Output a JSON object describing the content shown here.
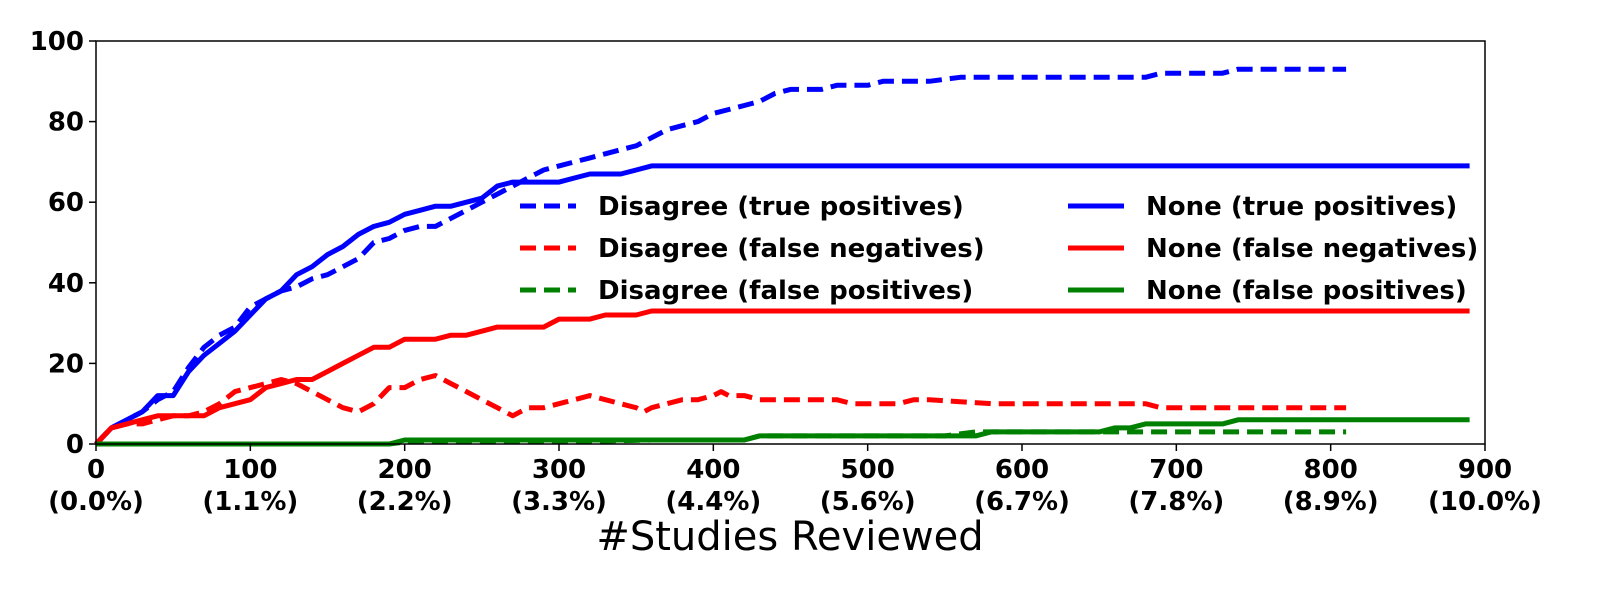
{
  "chart_data": {
    "type": "line",
    "title": "",
    "xlabel": "#Studies Reviewed",
    "ylabel": "",
    "xlim": [
      0,
      900
    ],
    "ylim": [
      0,
      100
    ],
    "x_ticks": [
      {
        "value": 0,
        "label": "0",
        "sublabel": "(0.0%)"
      },
      {
        "value": 100,
        "label": "100",
        "sublabel": "(1.1%)"
      },
      {
        "value": 200,
        "label": "200",
        "sublabel": "(2.2%)"
      },
      {
        "value": 300,
        "label": "300",
        "sublabel": "(3.3%)"
      },
      {
        "value": 400,
        "label": "400",
        "sublabel": "(4.4%)"
      },
      {
        "value": 500,
        "label": "500",
        "sublabel": "(5.6%)"
      },
      {
        "value": 600,
        "label": "600",
        "sublabel": "(6.7%)"
      },
      {
        "value": 700,
        "label": "700",
        "sublabel": "(7.8%)"
      },
      {
        "value": 800,
        "label": "800",
        "sublabel": "(8.9%)"
      },
      {
        "value": 900,
        "label": "900",
        "sublabel": "(10.0%)"
      }
    ],
    "y_ticks": [
      0,
      20,
      40,
      60,
      80,
      100
    ],
    "grid": false,
    "legend_position": "center-right",
    "series": [
      {
        "name": "Disagree (true positives)",
        "color": "#0000ff",
        "style": "dashed",
        "points": [
          [
            0,
            0
          ],
          [
            10,
            4
          ],
          [
            20,
            6
          ],
          [
            30,
            8
          ],
          [
            40,
            11
          ],
          [
            50,
            13
          ],
          [
            60,
            19
          ],
          [
            70,
            24
          ],
          [
            80,
            27
          ],
          [
            90,
            29
          ],
          [
            100,
            34
          ],
          [
            110,
            36
          ],
          [
            120,
            38
          ],
          [
            130,
            39
          ],
          [
            140,
            41
          ],
          [
            150,
            42
          ],
          [
            160,
            44
          ],
          [
            170,
            46
          ],
          [
            180,
            50
          ],
          [
            190,
            51
          ],
          [
            200,
            53
          ],
          [
            210,
            54
          ],
          [
            220,
            54
          ],
          [
            230,
            56
          ],
          [
            240,
            58
          ],
          [
            250,
            60
          ],
          [
            260,
            62
          ],
          [
            270,
            64
          ],
          [
            280,
            66
          ],
          [
            290,
            68
          ],
          [
            300,
            69
          ],
          [
            310,
            70
          ],
          [
            320,
            71
          ],
          [
            330,
            72
          ],
          [
            340,
            73
          ],
          [
            350,
            74
          ],
          [
            360,
            76
          ],
          [
            370,
            78
          ],
          [
            380,
            79
          ],
          [
            390,
            80
          ],
          [
            400,
            82
          ],
          [
            410,
            83
          ],
          [
            420,
            84
          ],
          [
            430,
            85
          ],
          [
            440,
            87
          ],
          [
            450,
            88
          ],
          [
            460,
            88
          ],
          [
            470,
            88
          ],
          [
            480,
            89
          ],
          [
            490,
            89
          ],
          [
            500,
            89
          ],
          [
            510,
            90
          ],
          [
            520,
            90
          ],
          [
            530,
            90
          ],
          [
            540,
            90
          ],
          [
            550,
            90.5
          ],
          [
            560,
            91
          ],
          [
            570,
            91
          ],
          [
            580,
            91
          ],
          [
            600,
            91
          ],
          [
            620,
            91
          ],
          [
            640,
            91
          ],
          [
            660,
            91
          ],
          [
            680,
            91
          ],
          [
            690,
            92
          ],
          [
            700,
            92
          ],
          [
            720,
            92
          ],
          [
            730,
            92
          ],
          [
            740,
            93
          ],
          [
            760,
            93
          ],
          [
            780,
            93
          ],
          [
            800,
            93
          ],
          [
            810,
            93
          ]
        ]
      },
      {
        "name": "Disagree (false negatives)",
        "color": "#ff0000",
        "style": "dashed",
        "points": [
          [
            0,
            0
          ],
          [
            10,
            4
          ],
          [
            20,
            5
          ],
          [
            30,
            5
          ],
          [
            40,
            6
          ],
          [
            50,
            7
          ],
          [
            60,
            7
          ],
          [
            70,
            8
          ],
          [
            80,
            10
          ],
          [
            90,
            13
          ],
          [
            100,
            14
          ],
          [
            110,
            15
          ],
          [
            120,
            16
          ],
          [
            130,
            15
          ],
          [
            140,
            13
          ],
          [
            150,
            11
          ],
          [
            160,
            9
          ],
          [
            170,
            8
          ],
          [
            180,
            10
          ],
          [
            190,
            14
          ],
          [
            200,
            14
          ],
          [
            210,
            16
          ],
          [
            220,
            17
          ],
          [
            230,
            15
          ],
          [
            240,
            13
          ],
          [
            250,
            11
          ],
          [
            260,
            9
          ],
          [
            270,
            7
          ],
          [
            280,
            9
          ],
          [
            290,
            9
          ],
          [
            300,
            10
          ],
          [
            310,
            11
          ],
          [
            320,
            12
          ],
          [
            330,
            11
          ],
          [
            340,
            10
          ],
          [
            350,
            9
          ],
          [
            355,
            8
          ],
          [
            360,
            9
          ],
          [
            370,
            10
          ],
          [
            380,
            11
          ],
          [
            390,
            11
          ],
          [
            400,
            12
          ],
          [
            405,
            13
          ],
          [
            410,
            12
          ],
          [
            420,
            12
          ],
          [
            430,
            11
          ],
          [
            440,
            11
          ],
          [
            460,
            11
          ],
          [
            480,
            11
          ],
          [
            490,
            10
          ],
          [
            500,
            10
          ],
          [
            520,
            10
          ],
          [
            530,
            11
          ],
          [
            540,
            11
          ],
          [
            560,
            10.5
          ],
          [
            580,
            10
          ],
          [
            600,
            10
          ],
          [
            640,
            10
          ],
          [
            680,
            10
          ],
          [
            690,
            9
          ],
          [
            700,
            9
          ],
          [
            740,
            9
          ],
          [
            780,
            9
          ],
          [
            810,
            9
          ]
        ]
      },
      {
        "name": "Disagree (false positives)",
        "color": "#008000",
        "style": "dashed",
        "points": [
          [
            0,
            0
          ],
          [
            100,
            0
          ],
          [
            190,
            0
          ],
          [
            200,
            0.5
          ],
          [
            250,
            0.5
          ],
          [
            300,
            0.5
          ],
          [
            360,
            1
          ],
          [
            400,
            1
          ],
          [
            420,
            1
          ],
          [
            430,
            2
          ],
          [
            500,
            2
          ],
          [
            550,
            2
          ],
          [
            570,
            3
          ],
          [
            600,
            3
          ],
          [
            650,
            3
          ],
          [
            700,
            3
          ],
          [
            750,
            3
          ],
          [
            810,
            3
          ]
        ]
      },
      {
        "name": "None (true positives)",
        "color": "#0000ff",
        "style": "solid",
        "points": [
          [
            0,
            0
          ],
          [
            10,
            4
          ],
          [
            20,
            6
          ],
          [
            30,
            8
          ],
          [
            40,
            12
          ],
          [
            50,
            12
          ],
          [
            60,
            18
          ],
          [
            70,
            22
          ],
          [
            80,
            25
          ],
          [
            90,
            28
          ],
          [
            100,
            32
          ],
          [
            110,
            36
          ],
          [
            120,
            38
          ],
          [
            130,
            42
          ],
          [
            140,
            44
          ],
          [
            150,
            47
          ],
          [
            160,
            49
          ],
          [
            170,
            52
          ],
          [
            180,
            54
          ],
          [
            190,
            55
          ],
          [
            200,
            57
          ],
          [
            210,
            58
          ],
          [
            220,
            59
          ],
          [
            230,
            59
          ],
          [
            240,
            60
          ],
          [
            250,
            61
          ],
          [
            260,
            64
          ],
          [
            270,
            65
          ],
          [
            280,
            65
          ],
          [
            290,
            65
          ],
          [
            300,
            65
          ],
          [
            310,
            66
          ],
          [
            320,
            67
          ],
          [
            330,
            67
          ],
          [
            340,
            67
          ],
          [
            350,
            68
          ],
          [
            360,
            69
          ],
          [
            400,
            69
          ],
          [
            500,
            69
          ],
          [
            600,
            69
          ],
          [
            700,
            69
          ],
          [
            800,
            69
          ],
          [
            890,
            69
          ]
        ]
      },
      {
        "name": "None (false negatives)",
        "color": "#ff0000",
        "style": "solid",
        "points": [
          [
            0,
            0
          ],
          [
            10,
            4
          ],
          [
            20,
            5
          ],
          [
            30,
            6
          ],
          [
            40,
            7
          ],
          [
            50,
            7
          ],
          [
            60,
            7
          ],
          [
            70,
            7
          ],
          [
            80,
            9
          ],
          [
            90,
            10
          ],
          [
            100,
            11
          ],
          [
            110,
            14
          ],
          [
            120,
            15
          ],
          [
            130,
            16
          ],
          [
            140,
            16
          ],
          [
            150,
            18
          ],
          [
            160,
            20
          ],
          [
            170,
            22
          ],
          [
            180,
            24
          ],
          [
            190,
            24
          ],
          [
            200,
            26
          ],
          [
            210,
            26
          ],
          [
            220,
            26
          ],
          [
            230,
            27
          ],
          [
            240,
            27
          ],
          [
            250,
            28
          ],
          [
            260,
            29
          ],
          [
            270,
            29
          ],
          [
            280,
            29
          ],
          [
            290,
            29
          ],
          [
            300,
            31
          ],
          [
            310,
            31
          ],
          [
            320,
            31
          ],
          [
            330,
            32
          ],
          [
            340,
            32
          ],
          [
            350,
            32
          ],
          [
            360,
            33
          ],
          [
            400,
            33
          ],
          [
            500,
            33
          ],
          [
            600,
            33
          ],
          [
            700,
            33
          ],
          [
            800,
            33
          ],
          [
            890,
            33
          ]
        ]
      },
      {
        "name": "None (false positives)",
        "color": "#008000",
        "style": "solid",
        "points": [
          [
            0,
            0
          ],
          [
            100,
            0
          ],
          [
            190,
            0
          ],
          [
            200,
            1
          ],
          [
            300,
            1
          ],
          [
            360,
            1
          ],
          [
            420,
            1
          ],
          [
            430,
            2
          ],
          [
            500,
            2
          ],
          [
            570,
            2
          ],
          [
            580,
            3
          ],
          [
            650,
            3
          ],
          [
            660,
            4
          ],
          [
            670,
            4
          ],
          [
            680,
            5
          ],
          [
            700,
            5
          ],
          [
            730,
            5
          ],
          [
            740,
            6
          ],
          [
            800,
            6
          ],
          [
            890,
            6
          ]
        ]
      }
    ]
  }
}
